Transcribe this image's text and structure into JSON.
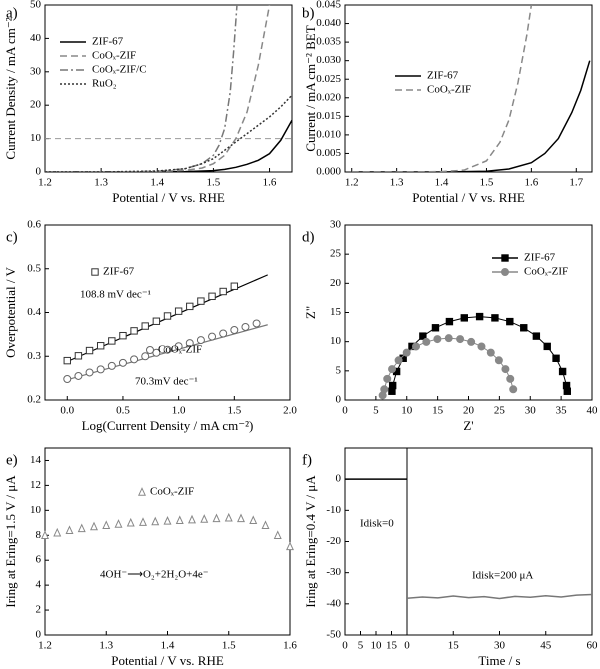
{
  "chart_data": [
    {
      "type": "line",
      "panel_label": "a)",
      "xlabel": "Potential / V vs. RHE",
      "ylabel": "Current Density / mA cm⁻²",
      "xlim": [
        1.2,
        1.64
      ],
      "ylim": [
        0,
        50
      ],
      "xticks": [
        1.2,
        1.3,
        1.4,
        1.5,
        1.6
      ],
      "yticks": [
        0,
        10,
        20,
        30,
        40,
        50
      ],
      "hline": 10,
      "hline_color": "#999",
      "legend": "upper left",
      "series": [
        {
          "name": "ZIF-67",
          "color": "#000",
          "dash": "solid",
          "x": [
            1.2,
            1.3,
            1.4,
            1.45,
            1.5,
            1.52,
            1.54,
            1.56,
            1.58,
            1.6,
            1.62,
            1.64
          ],
          "values": [
            0,
            0,
            0,
            0.1,
            0.4,
            0.8,
            1.4,
            2.3,
            3.5,
            5.5,
            9.5,
            15.5
          ]
        },
        {
          "name": "CoOₓ-ZIF",
          "color": "#888",
          "dash": "dashed",
          "x": [
            1.2,
            1.3,
            1.4,
            1.45,
            1.48,
            1.5,
            1.52,
            1.54,
            1.56,
            1.58,
            1.6
          ],
          "values": [
            0,
            0,
            0.1,
            0.5,
            1.2,
            2.5,
            5,
            10,
            18,
            32,
            50
          ]
        },
        {
          "name": "CoOₓ-ZIF/C",
          "color": "#777",
          "dash": "dashdot",
          "x": [
            1.2,
            1.3,
            1.4,
            1.45,
            1.48,
            1.5,
            1.51,
            1.52,
            1.53,
            1.536,
            1.542
          ],
          "values": [
            0,
            0,
            0.2,
            1,
            2.5,
            5,
            8,
            13,
            24,
            36,
            50
          ]
        },
        {
          "name": "RuO₂",
          "color": "#333",
          "dash": "dotted",
          "x": [
            1.2,
            1.3,
            1.4,
            1.45,
            1.48,
            1.5,
            1.52,
            1.54,
            1.56,
            1.58,
            1.6,
            1.62,
            1.64
          ],
          "values": [
            0,
            0,
            0.3,
            1,
            2.5,
            4,
            6.5,
            9,
            11.5,
            14,
            16.5,
            19.5,
            23
          ]
        }
      ]
    },
    {
      "type": "line",
      "panel_label": "b)",
      "xlabel": "Potential / V vs. RHE",
      "ylabel": "Current / mA cm⁻² BET",
      "xlim": [
        1.185,
        1.735
      ],
      "ylim": [
        0,
        0.045
      ],
      "xticks": [
        1.2,
        1.3,
        1.4,
        1.5,
        1.6,
        1.7
      ],
      "yticks": [
        {
          "value": 0,
          "label": "0.000"
        },
        {
          "value": 0.005,
          "label": "0.005"
        },
        {
          "value": 0.01,
          "label": "0.010"
        },
        {
          "value": 0.015,
          "label": "0.015"
        },
        {
          "value": 0.02,
          "label": "0.020"
        },
        {
          "value": 0.025,
          "label": "0.025"
        },
        {
          "value": 0.03,
          "label": "0.030"
        },
        {
          "value": 0.035,
          "label": "0.035"
        },
        {
          "value": 0.04,
          "label": "0.040"
        },
        {
          "value": 0.045,
          "label": "0.045"
        }
      ],
      "legend": "center left",
      "series": [
        {
          "name": "ZIF-67",
          "color": "#000",
          "dash": "solid",
          "x": [
            1.2,
            1.3,
            1.4,
            1.5,
            1.55,
            1.6,
            1.63,
            1.66,
            1.69,
            1.71,
            1.73
          ],
          "values": [
            0,
            0,
            0,
            0.0002,
            0.0008,
            0.0025,
            0.005,
            0.009,
            0.016,
            0.022,
            0.03
          ]
        },
        {
          "name": "CoOₓ-ZIF",
          "color": "#888",
          "dash": "dashed",
          "x": [
            1.2,
            1.3,
            1.4,
            1.45,
            1.5,
            1.53,
            1.55,
            1.57,
            1.59,
            1.6
          ],
          "values": [
            0,
            0,
            0.0001,
            0.0005,
            0.003,
            0.008,
            0.014,
            0.024,
            0.037,
            0.045
          ]
        }
      ]
    },
    {
      "type": "scatter",
      "panel_label": "c)",
      "xlabel": "Log(Current Density / mA cm⁻²)",
      "ylabel": "Overpotential / V",
      "xlim": [
        -0.2,
        2.0
      ],
      "ylim": [
        0.2,
        0.6
      ],
      "xticks": [
        {
          "value": 0,
          "label": "0.0"
        },
        0.5,
        {
          "value": 1,
          "label": "1.0"
        },
        1.5,
        {
          "value": 2,
          "label": "2.0"
        }
      ],
      "yticks": [
        0.2,
        0.3,
        0.4,
        0.5,
        0.6
      ],
      "annotations": [
        "108.8 mV dec⁻¹",
        "70.3mV dec⁻¹"
      ],
      "series": [
        {
          "name": "ZIF-67",
          "color": "#333",
          "marker": "square-open",
          "x": [
            0,
            0.1,
            0.2,
            0.3,
            0.4,
            0.5,
            0.6,
            0.7,
            0.8,
            0.9,
            1.0,
            1.1,
            1.2,
            1.3,
            1.4,
            1.5
          ],
          "values": [
            0.29,
            0.301,
            0.313,
            0.324,
            0.335,
            0.347,
            0.358,
            0.369,
            0.38,
            0.392,
            0.403,
            0.414,
            0.426,
            0.437,
            0.448,
            0.46
          ]
        },
        {
          "name": "CoOₓ-ZIF",
          "color": "#666",
          "marker": "circle-open",
          "x": [
            0,
            0.1,
            0.2,
            0.3,
            0.4,
            0.5,
            0.6,
            0.7,
            0.8,
            0.9,
            1.0,
            1.1,
            1.2,
            1.3,
            1.4,
            1.5,
            1.6,
            1.7
          ],
          "values": [
            0.248,
            0.255,
            0.263,
            0.27,
            0.278,
            0.285,
            0.293,
            0.3,
            0.308,
            0.315,
            0.323,
            0.33,
            0.337,
            0.345,
            0.352,
            0.36,
            0.367,
            0.375
          ]
        }
      ],
      "fits": [
        {
          "color": "#000",
          "x": [
            0,
            1.8
          ],
          "values": [
            0.288,
            0.486
          ]
        },
        {
          "color": "#777",
          "x": [
            -0.02,
            1.8
          ],
          "values": [
            0.245,
            0.372
          ]
        }
      ]
    },
    {
      "type": "scatter",
      "panel_label": "d)",
      "xlabel": "Z'",
      "ylabel": "Z\"",
      "xlim": [
        0,
        40
      ],
      "ylim": [
        0,
        30
      ],
      "xticks": [
        0,
        5,
        10,
        15,
        20,
        25,
        30,
        35,
        40
      ],
      "yticks": [
        0,
        5,
        10,
        15,
        20,
        25,
        30
      ],
      "legend": "upper right",
      "series": [
        {
          "name": "ZIF-67",
          "color": "#000",
          "marker": "square",
          "line": true,
          "x": [
            7.6,
            7.72,
            8.36,
            9.42,
            10.85,
            12.61,
            14.65,
            16.91,
            19.32,
            21.8,
            24.28,
            26.69,
            28.95,
            30.99,
            32.75,
            34.18,
            35.24,
            35.88,
            36.0
          ],
          "values": [
            1.5,
            2.48,
            4.89,
            7.15,
            9.19,
            10.95,
            12.38,
            13.44,
            14.08,
            14.3,
            14.08,
            13.44,
            12.38,
            10.95,
            9.19,
            7.15,
            4.89,
            2.48,
            1.5
          ]
        },
        {
          "name": "CoOₓ-ZIF",
          "color": "#888",
          "marker": "circle",
          "line": true,
          "x": [
            6.1,
            6.36,
            6.84,
            7.62,
            8.68,
            9.99,
            11.5,
            13.17,
            14.96,
            16.8,
            18.64,
            20.43,
            22.1,
            23.61,
            24.92,
            25.98,
            26.76,
            27.24
          ],
          "values": [
            0.8,
            1.84,
            3.63,
            5.3,
            6.81,
            8.12,
            9.18,
            9.96,
            10.44,
            10.6,
            10.44,
            9.96,
            9.18,
            8.12,
            6.81,
            5.3,
            3.63,
            1.84
          ]
        }
      ]
    },
    {
      "type": "scatter",
      "panel_label": "e)",
      "xlabel": "Potential / V vs. RHE",
      "ylabel": "Iring at Ering=1.5 V / μA",
      "xlim": [
        1.2,
        1.6
      ],
      "ylim": [
        0,
        15
      ],
      "xticks": [
        1.2,
        1.3,
        1.4,
        1.5,
        1.6
      ],
      "yticks": [
        0,
        2,
        4,
        6,
        8,
        10,
        12,
        14
      ],
      "legend": "upper center",
      "annotations": [
        "4OH⁻⟶O₂+2H₂O+4e⁻"
      ],
      "series": [
        {
          "name": "CoOₓ-ZIF",
          "color": "#888",
          "marker": "triangle-open",
          "x": [
            1.2,
            1.22,
            1.24,
            1.26,
            1.28,
            1.3,
            1.32,
            1.34,
            1.36,
            1.38,
            1.4,
            1.42,
            1.44,
            1.46,
            1.48,
            1.5,
            1.52,
            1.54,
            1.56,
            1.58,
            1.6
          ],
          "values": [
            8.0,
            8.2,
            8.4,
            8.55,
            8.7,
            8.8,
            8.9,
            9.0,
            9.05,
            9.1,
            9.15,
            9.2,
            9.25,
            9.3,
            9.35,
            9.4,
            9.35,
            9.2,
            8.8,
            8.0,
            7.1
          ]
        }
      ]
    },
    {
      "type": "line",
      "panel_label": "f)",
      "ylabel": "Iring at Ering=0.4 V / μA",
      "xlim": [
        0,
        20
      ],
      "ylim": [
        -50,
        10
      ],
      "xticks": [
        0,
        5,
        10,
        15
      ],
      "yticks": [
        0,
        -10,
        -20,
        -30,
        -40,
        -50
      ],
      "annotations": [
        "Idisk=0"
      ],
      "series": [
        {
          "color": "#000",
          "dash": "solid",
          "x": [
            0,
            20
          ],
          "values": [
            0,
            0
          ]
        }
      ]
    },
    {
      "type": "line",
      "xlabel": "Time / s",
      "xlim": [
        0,
        60
      ],
      "ylim": [
        -50,
        10
      ],
      "xticks": [
        0,
        15,
        30,
        45,
        60
      ],
      "annotations": [
        "Idisk=200 μA"
      ],
      "series": [
        {
          "color": "#777",
          "dash": "solid",
          "x": [
            0,
            5,
            10,
            15,
            20,
            25,
            30,
            35,
            40,
            45,
            50,
            55,
            60
          ],
          "values": [
            -38.2,
            -37.8,
            -38.1,
            -37.5,
            -38.0,
            -37.7,
            -38.3,
            -37.6,
            -37.9,
            -37.4,
            -37.8,
            -37.2,
            -37.0
          ]
        }
      ]
    }
  ]
}
